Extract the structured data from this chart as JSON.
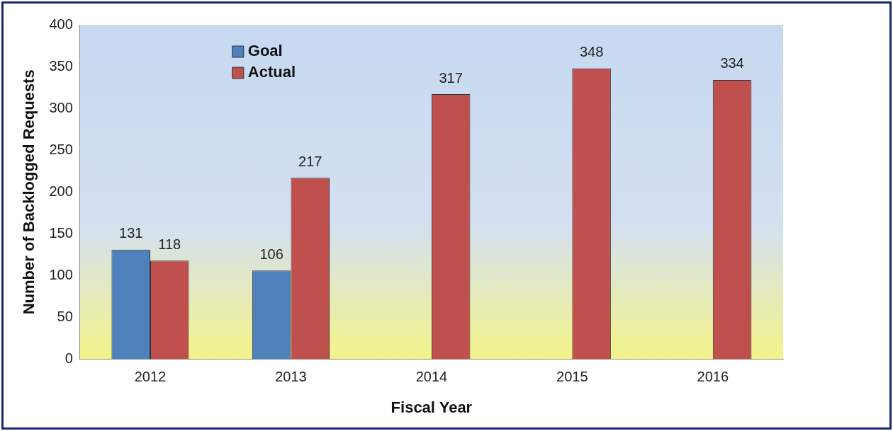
{
  "chart_data": {
    "type": "bar",
    "xlabel": "Fiscal Year",
    "ylabel": "Number of Backlogged Requests",
    "categories": [
      "2012",
      "2013",
      "2014",
      "2015",
      "2016"
    ],
    "series": [
      {
        "name": "Goal",
        "color": "#4f81bd",
        "values": [
          131,
          106,
          null,
          null,
          null
        ]
      },
      {
        "name": "Actual",
        "color": "#c0504d",
        "values": [
          118,
          217,
          317,
          348,
          334
        ]
      }
    ],
    "ylim": [
      0,
      400
    ],
    "yticks": [
      0,
      50,
      100,
      150,
      200,
      250,
      300,
      350,
      400
    ],
    "grid": false,
    "legend": "top left",
    "data_labels": true
  }
}
